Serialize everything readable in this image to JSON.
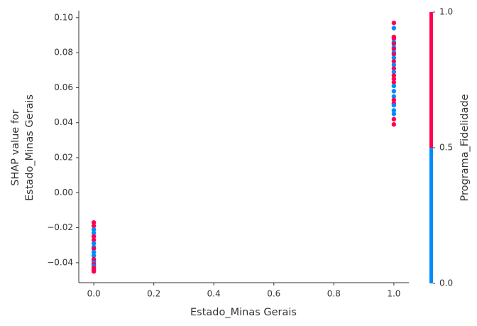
{
  "chart_data": {
    "type": "scatter",
    "xlabel": "Estado_Minas Gerais",
    "ylabel": [
      "SHAP value for",
      "Estado_Minas Gerais"
    ],
    "x": [
      1,
      1,
      1,
      1,
      1,
      1,
      1,
      1,
      1,
      1,
      1,
      1,
      1,
      1,
      1,
      1,
      1,
      1,
      1,
      1,
      1,
      1,
      1,
      1,
      1,
      1,
      1,
      1,
      0,
      0,
      0,
      0,
      0,
      0,
      0,
      0,
      0,
      0,
      0,
      0,
      0,
      0,
      0,
      0,
      0,
      0,
      0
    ],
    "y": [
      0.097,
      0.094,
      0.089,
      0.088,
      0.086,
      0.085,
      0.083,
      0.082,
      0.08,
      0.079,
      0.077,
      0.075,
      0.073,
      0.071,
      0.069,
      0.067,
      0.065,
      0.063,
      0.061,
      0.058,
      0.055,
      0.053,
      0.051,
      0.05,
      0.047,
      0.045,
      0.042,
      0.039,
      -0.017,
      -0.019,
      -0.021,
      -0.023,
      -0.025,
      -0.027,
      -0.029,
      -0.031,
      -0.032,
      -0.034,
      -0.036,
      -0.038,
      -0.039,
      -0.04,
      -0.041,
      -0.042,
      -0.043,
      -0.044,
      -0.045
    ],
    "color_values": [
      1,
      0,
      1,
      1,
      0,
      1,
      0,
      1,
      0,
      1,
      0,
      1,
      0,
      1,
      0,
      1,
      1,
      1,
      0,
      0,
      0,
      1,
      1,
      0,
      0,
      0,
      1,
      1,
      1,
      1,
      0,
      0,
      1,
      1,
      0,
      0,
      1,
      0,
      0,
      1,
      1,
      0,
      1,
      0,
      1,
      1,
      1
    ],
    "xlim": [
      -0.05,
      1.05
    ],
    "ylim": [
      -0.0514,
      0.104
    ],
    "xticks": [
      {
        "value": 0,
        "label": "0.0"
      },
      {
        "value": 0.2,
        "label": "0.2"
      },
      {
        "value": 0.4,
        "label": "0.4"
      },
      {
        "value": 0.6,
        "label": "0.6"
      },
      {
        "value": 0.8,
        "label": "0.8"
      },
      {
        "value": 1,
        "label": "1.0"
      }
    ],
    "yticks": [
      {
        "value": -0.04,
        "label": "−0.04"
      },
      {
        "value": -0.02,
        "label": "−0.02"
      },
      {
        "value": 0,
        "label": "0.00"
      },
      {
        "value": 0.02,
        "label": "0.02"
      },
      {
        "value": 0.04,
        "label": "0.04"
      },
      {
        "value": 0.06,
        "label": "0.06"
      },
      {
        "value": 0.08,
        "label": "0.08"
      },
      {
        "value": 0.1,
        "label": "0.10"
      }
    ],
    "colorbar": {
      "label": "Programa_Fidelidade",
      "lim": [
        0,
        1
      ],
      "colors": [
        "#008bfb",
        "#ff0051"
      ],
      "ticks": [
        {
          "value": 0,
          "label": "0.0"
        },
        {
          "value": 0.5,
          "label": "0.5"
        },
        {
          "value": 1,
          "label": "1.0"
        }
      ]
    }
  }
}
